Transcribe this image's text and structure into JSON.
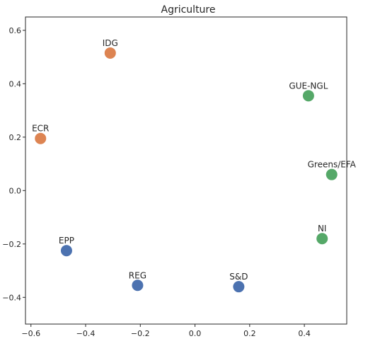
{
  "chart_data": {
    "type": "scatter",
    "title": "Agriculture",
    "xlabel": "",
    "ylabel": "",
    "xlim": [
      -0.62,
      0.555
    ],
    "ylim": [
      -0.5,
      0.65
    ],
    "x_ticks": [
      -0.6,
      -0.4,
      -0.2,
      0.0,
      0.2,
      0.4
    ],
    "x_tick_labels": [
      "−0.6",
      "−0.4",
      "−0.2",
      "0.0",
      "0.2",
      "0.4"
    ],
    "y_ticks": [
      0.6,
      0.4,
      0.2,
      0.0,
      -0.2,
      -0.4
    ],
    "y_tick_labels": [
      "0.6",
      "0.4",
      "0.2",
      "0.0",
      "−0.2",
      "−0.4"
    ],
    "grid": false,
    "colors": {
      "blue": "#4c72b0",
      "orange": "#dd8452",
      "green": "#55a868",
      "frame": "#262626"
    },
    "points": [
      {
        "label": "IDG",
        "x": -0.31,
        "y": 0.515,
        "color": "#dd8452"
      },
      {
        "label": "ECR",
        "x": -0.565,
        "y": 0.195,
        "color": "#dd8452"
      },
      {
        "label": "GUE-NGL",
        "x": 0.415,
        "y": 0.355,
        "color": "#55a868"
      },
      {
        "label": "Greens/EFA",
        "x": 0.5,
        "y": 0.06,
        "color": "#55a868"
      },
      {
        "label": "NI",
        "x": 0.465,
        "y": -0.18,
        "color": "#55a868"
      },
      {
        "label": "EPP",
        "x": -0.47,
        "y": -0.225,
        "color": "#4c72b0"
      },
      {
        "label": "REG",
        "x": -0.21,
        "y": -0.355,
        "color": "#4c72b0"
      },
      {
        "label": "S&D",
        "x": 0.16,
        "y": -0.36,
        "color": "#4c72b0"
      }
    ]
  }
}
